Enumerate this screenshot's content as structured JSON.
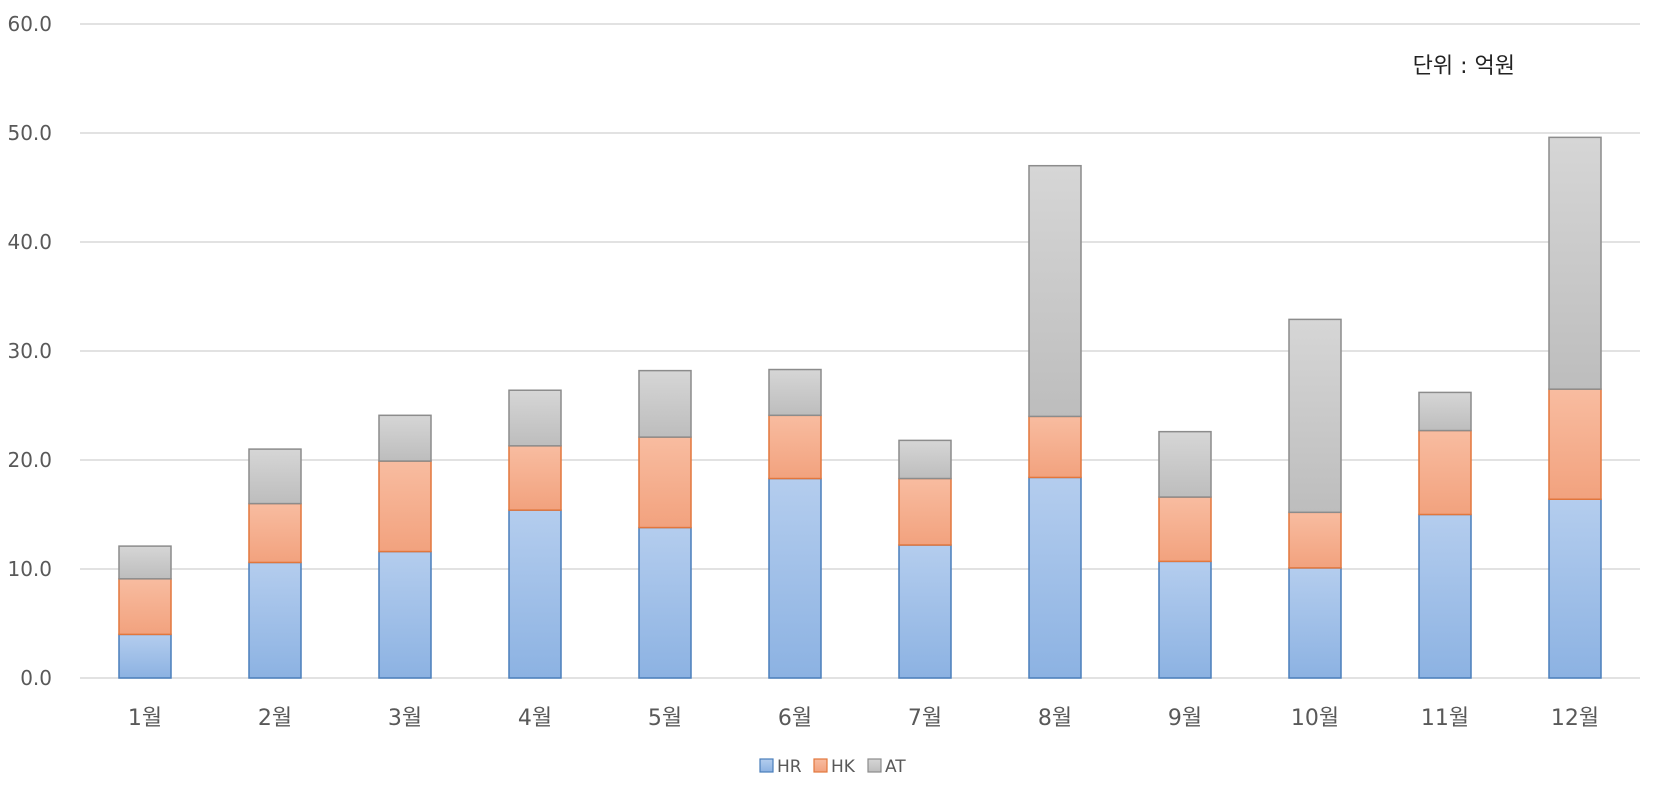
{
  "chart_data": {
    "type": "bar",
    "stacked": true,
    "title": "",
    "unit_label": "단위 : 억원",
    "categories": [
      "1월",
      "2월",
      "3월",
      "4월",
      "5월",
      "6월",
      "7월",
      "8월",
      "9월",
      "10월",
      "11월",
      "12월"
    ],
    "series": [
      {
        "name": "HR",
        "color": "#8fb4e3",
        "values": [
          4.0,
          10.6,
          11.6,
          15.4,
          13.8,
          18.3,
          12.2,
          18.4,
          10.7,
          10.1,
          15.0,
          16.4
        ]
      },
      {
        "name": "HK",
        "color": "#f4a582",
        "values": [
          5.1,
          5.4,
          8.3,
          5.9,
          8.3,
          5.8,
          6.1,
          5.6,
          5.9,
          5.1,
          7.7,
          10.1
        ]
      },
      {
        "name": "AT",
        "color": "#c8c8c8",
        "values": [
          3.0,
          5.0,
          4.2,
          5.1,
          6.1,
          4.2,
          3.5,
          23.0,
          6.0,
          17.7,
          3.5,
          23.1
        ]
      }
    ],
    "ylim": [
      0,
      60
    ],
    "yticks": [
      "0.0",
      "10.0",
      "20.0",
      "30.0",
      "40.0",
      "50.0",
      "60.0"
    ],
    "grid": true,
    "legend": "bottom-center"
  }
}
